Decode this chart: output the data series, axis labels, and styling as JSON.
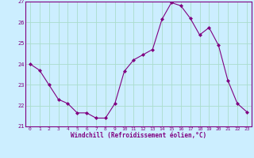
{
  "x": [
    0,
    1,
    2,
    3,
    4,
    5,
    6,
    7,
    8,
    9,
    10,
    11,
    12,
    13,
    14,
    15,
    16,
    17,
    18,
    19,
    20,
    21,
    22,
    23
  ],
  "y": [
    24.0,
    23.7,
    23.0,
    22.3,
    22.1,
    21.65,
    21.65,
    21.4,
    21.4,
    22.1,
    23.65,
    24.2,
    24.45,
    24.7,
    26.15,
    26.95,
    26.8,
    26.2,
    25.4,
    25.75,
    24.9,
    23.2,
    22.1,
    21.7
  ],
  "line_color": "#800080",
  "marker_color": "#800080",
  "bg_color": "#cceeff",
  "grid_color": "#aaddcc",
  "xlabel": "Windchill (Refroidissement éolien,°C)",
  "xlabel_color": "#800080",
  "tick_color": "#800080",
  "spine_color": "#800080",
  "ylim": [
    21,
    27
  ],
  "xlim": [
    -0.5,
    23.5
  ],
  "yticks": [
    21,
    22,
    23,
    24,
    25,
    26,
    27
  ],
  "xticks": [
    0,
    1,
    2,
    3,
    4,
    5,
    6,
    7,
    8,
    9,
    10,
    11,
    12,
    13,
    14,
    15,
    16,
    17,
    18,
    19,
    20,
    21,
    22,
    23
  ]
}
